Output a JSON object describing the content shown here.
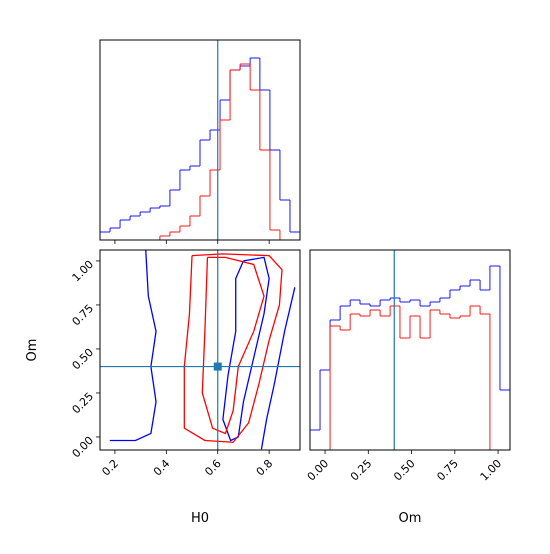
{
  "chart_data": [
    {
      "type": "histogram",
      "xlim": [
        0.142,
        0.92
      ],
      "ylim": [
        0,
        100
      ],
      "xticks": [
        0.2,
        0.4,
        0.6,
        0.8
      ],
      "truth": 0.6,
      "truth_color": "#1f77b4",
      "bins": [
        0.142,
        0.181,
        0.22,
        0.259,
        0.298,
        0.337,
        0.375,
        0.414,
        0.453,
        0.492,
        0.531,
        0.57,
        0.609,
        0.648,
        0.687,
        0.726,
        0.764,
        0.803,
        0.842,
        0.881,
        0.92
      ],
      "series": [
        {
          "color": "#0000ff",
          "values": [
            4,
            6,
            10,
            12,
            14,
            16,
            17,
            25,
            35,
            37,
            50,
            55,
            70,
            85,
            87,
            91,
            75,
            45,
            20,
            4
          ]
        },
        {
          "color": "#ff0000",
          "values": [
            0,
            0,
            0,
            0,
            0,
            0,
            2,
            4,
            7,
            12,
            22,
            35,
            60,
            85,
            88,
            75,
            45,
            5,
            0,
            0
          ]
        }
      ]
    },
    {
      "type": "contour",
      "xlabel": "H0",
      "ylabel": "Om",
      "xlim": [
        0.142,
        0.92
      ],
      "ylim": [
        -0.074,
        1.062
      ],
      "xticks": [
        0.2,
        0.4,
        0.6,
        0.8
      ],
      "yticks": [
        {
          "value": 0,
          "label": "0.00"
        },
        {
          "value": 0.25,
          "label": "0.25"
        },
        {
          "value": 0.5,
          "label": "0.50"
        },
        {
          "value": 0.75,
          "label": "0.75"
        },
        {
          "value": 1,
          "label": "1.00"
        }
      ],
      "truth": [
        0.6,
        0.4
      ],
      "truth_color": "#1f77b4",
      "series": [
        {
          "color": "#0000ff",
          "x": [
            0.32,
            0.33,
            0.36,
            0.34,
            0.36,
            0.34,
            0.28,
            0.18
          ],
          "y": [
            1.06,
            0.8,
            0.6,
            0.4,
            0.2,
            0.02,
            -0.02,
            -0.02
          ]
        },
        {
          "color": "#0000ff",
          "x": [
            0.9,
            0.86,
            0.82,
            0.79,
            0.77
          ],
          "y": [
            0.85,
            0.6,
            0.3,
            0.1,
            -0.07
          ]
        },
        {
          "color": "#0000ff",
          "x": [
            0.7,
            0.78,
            0.8,
            0.78,
            0.74,
            0.7,
            0.68,
            0.65,
            0.62,
            0.64,
            0.67,
            0.67,
            0.7
          ],
          "y": [
            1.0,
            1.02,
            0.9,
            0.7,
            0.45,
            0.2,
            0.0,
            -0.02,
            0.1,
            0.35,
            0.6,
            0.9,
            1.0
          ]
        },
        {
          "color": "#ff0000",
          "x": [
            0.5,
            0.62,
            0.8,
            0.85,
            0.84,
            0.8,
            0.76,
            0.72,
            0.66,
            0.55,
            0.47,
            0.47,
            0.49,
            0.5
          ],
          "y": [
            1.03,
            1.04,
            1.03,
            0.95,
            0.75,
            0.55,
            0.3,
            0.08,
            -0.03,
            -0.02,
            0.05,
            0.4,
            0.7,
            1.03
          ]
        },
        {
          "color": "#ff0000",
          "x": [
            0.56,
            0.63,
            0.74,
            0.78,
            0.74,
            0.68,
            0.66,
            0.63,
            0.58,
            0.54,
            0.55,
            0.56
          ],
          "y": [
            1.02,
            1.02,
            0.98,
            0.8,
            0.6,
            0.4,
            0.15,
            0.02,
            0.05,
            0.25,
            0.6,
            1.02
          ]
        }
      ]
    },
    {
      "type": "histogram",
      "xlabel": "Om",
      "xlim": [
        -0.087,
        1.069
      ],
      "ylim": [
        0,
        100
      ],
      "xticks": [
        {
          "value": 0,
          "label": "0.00"
        },
        {
          "value": 0.25,
          "label": "0.25"
        },
        {
          "value": 0.5,
          "label": "0.50"
        },
        {
          "value": 0.75,
          "label": "0.75"
        },
        {
          "value": 1,
          "label": "1.00"
        }
      ],
      "truth": 0.4,
      "truth_color": "#1f77b4",
      "bins": [
        -0.087,
        -0.029,
        0.029,
        0.087,
        0.145,
        0.202,
        0.26,
        0.318,
        0.376,
        0.433,
        0.491,
        0.549,
        0.607,
        0.664,
        0.722,
        0.78,
        0.838,
        0.896,
        0.953,
        1.011,
        1.069
      ],
      "series": [
        {
          "color": "#0000ff",
          "values": [
            10,
            40,
            65,
            72,
            75,
            73,
            72,
            75,
            76,
            74,
            75,
            72,
            74,
            76,
            80,
            82,
            85,
            80,
            92,
            30
          ]
        },
        {
          "color": "#ff0000",
          "values": [
            0,
            0,
            62,
            60,
            68,
            67,
            70,
            67,
            72,
            56,
            67,
            56,
            70,
            68,
            66,
            67,
            72,
            68,
            0,
            0
          ]
        }
      ]
    }
  ]
}
